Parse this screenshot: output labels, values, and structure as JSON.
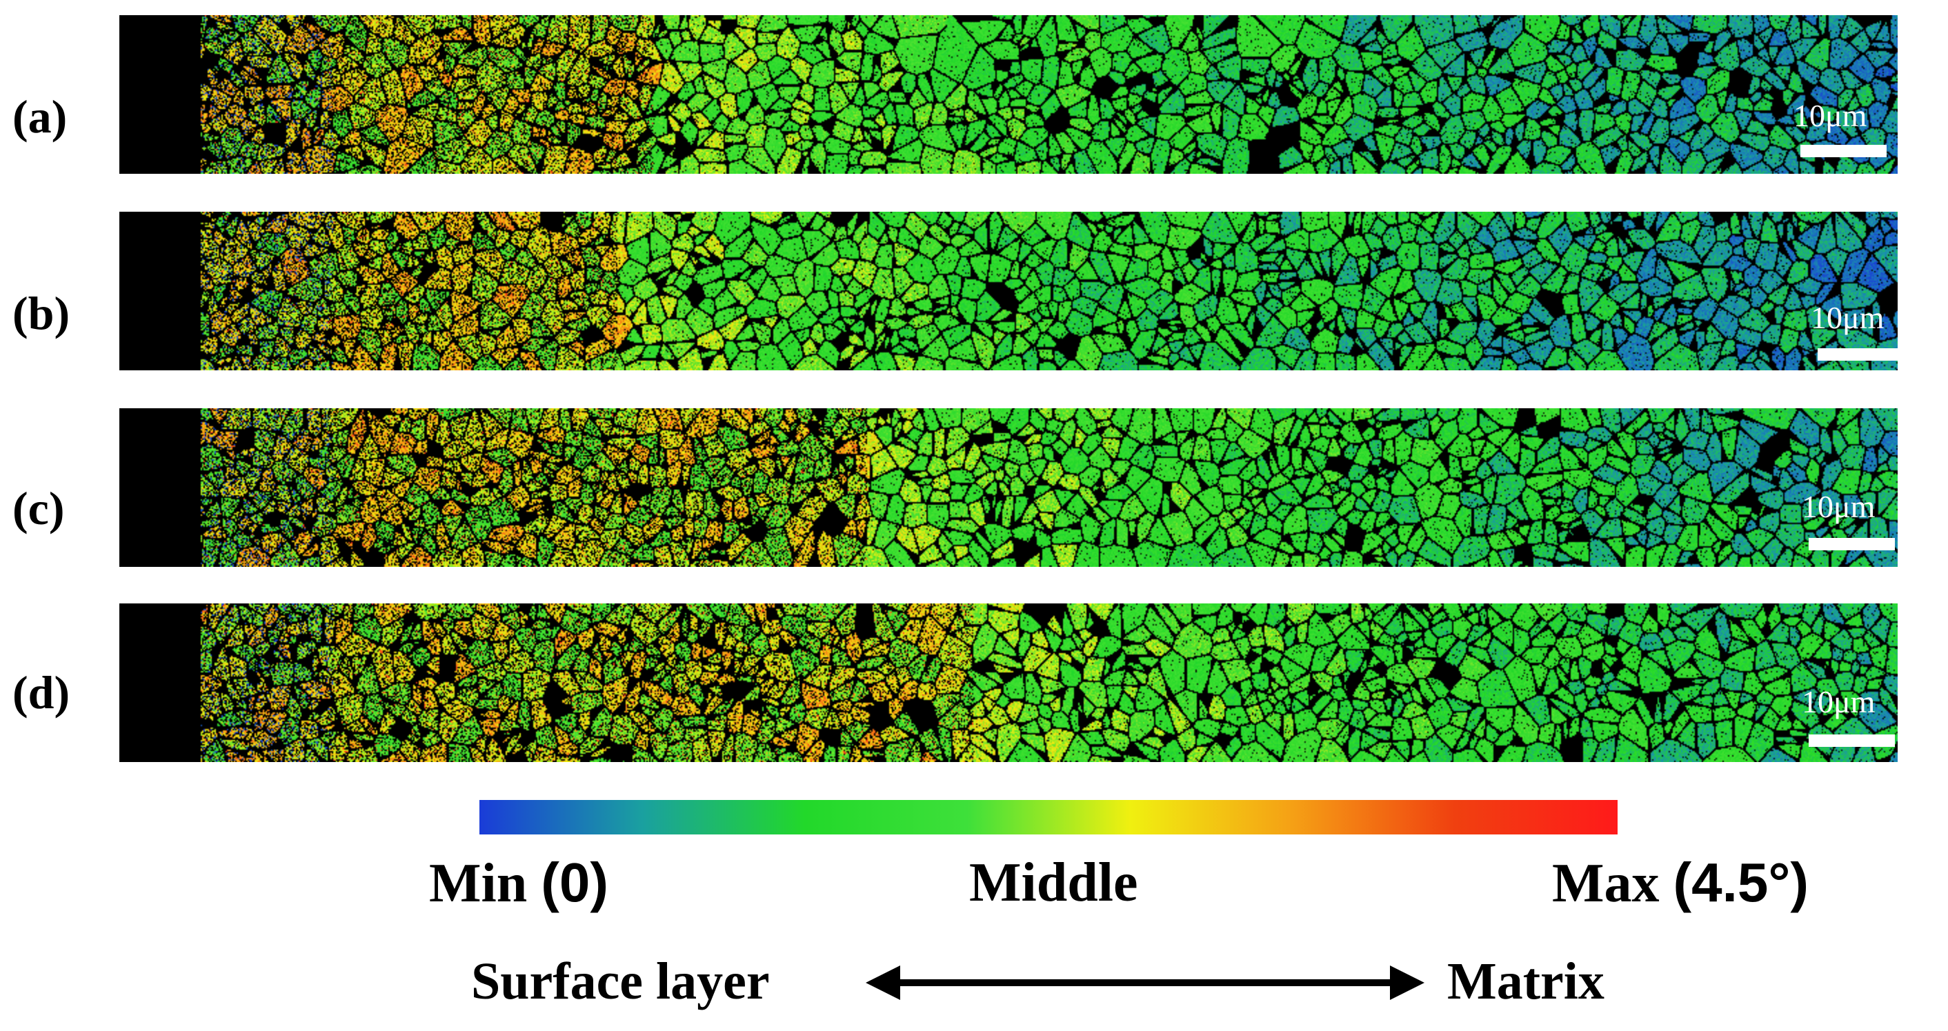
{
  "panels": [
    {
      "label": "(a)",
      "scale": "10μm"
    },
    {
      "label": "(b)",
      "scale": "10μm"
    },
    {
      "label": "(c)",
      "scale": "10μm"
    },
    {
      "label": "(d)",
      "scale": "10μm"
    }
  ],
  "colorbar": {
    "min_word": "Min",
    "min_value": "(0)",
    "mid_word": "Middle",
    "max_word": "Max",
    "max_value": "(4.5°)",
    "colors": [
      "#1a3cd8",
      "#1aa0a0",
      "#22d82a",
      "#3ee03a",
      "#f0f010",
      "#f5a015",
      "#f04010",
      "#ff1a1a"
    ]
  },
  "direction": {
    "left": "Surface layer",
    "right": "Matrix"
  }
}
